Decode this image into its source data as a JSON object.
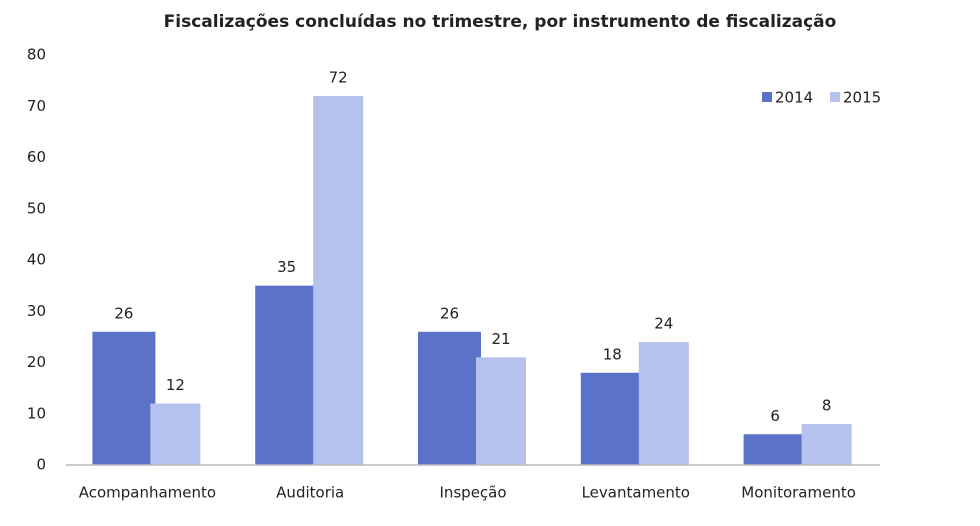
{
  "chart_data": {
    "type": "bar",
    "title": "Fiscalizações concluídas no trimestre, por instrumento de fiscalização",
    "categories": [
      "Acompanhamento",
      "Auditoria",
      "Inspeção",
      "Levantamento",
      "Monitoramento"
    ],
    "series": [
      {
        "name": "2014",
        "color": "#5b72c9",
        "values": [
          26,
          35,
          26,
          18,
          6
        ]
      },
      {
        "name": "2015",
        "color": "#b5c2ee",
        "values": [
          12,
          72,
          21,
          24,
          8
        ]
      }
    ],
    "ylim": [
      0,
      80
    ],
    "yticks": [
      0,
      10,
      20,
      30,
      40,
      50,
      60,
      70,
      80
    ],
    "grid": false,
    "legend": "top-right"
  }
}
